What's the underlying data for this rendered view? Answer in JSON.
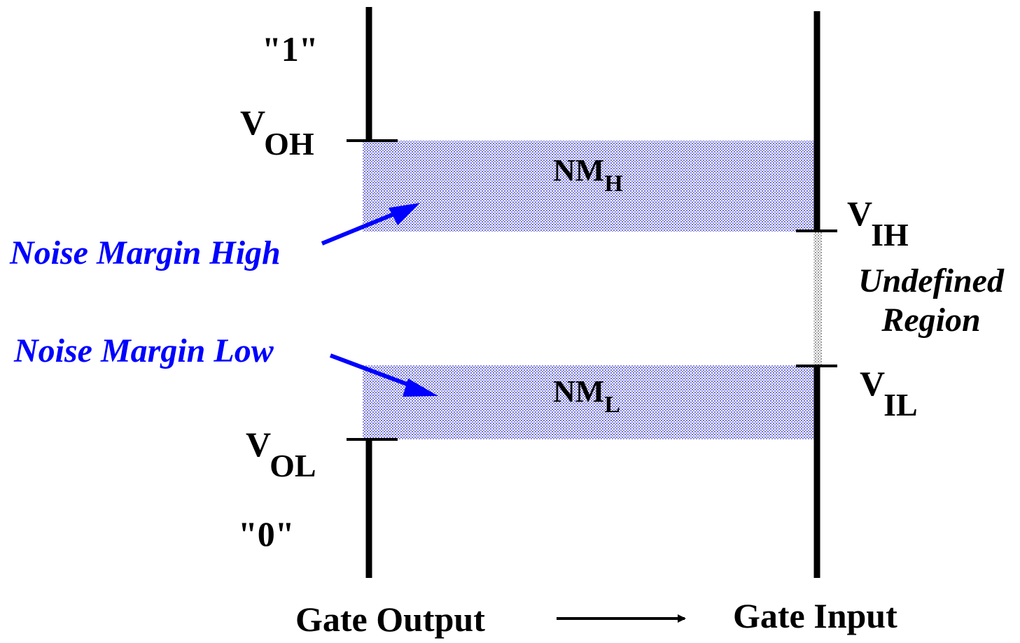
{
  "labels": {
    "one": "\"1\"",
    "zero": "\"0\"",
    "v_oh": {
      "main": "V",
      "sub": "OH"
    },
    "v_ol": {
      "main": "V",
      "sub": "OL"
    },
    "v_ih": {
      "main": "V",
      "sub": "IH"
    },
    "v_il": {
      "main": "V",
      "sub": "IL"
    },
    "nm_h": {
      "main": "NM",
      "sub": "H"
    },
    "nm_l": {
      "main": "NM",
      "sub": "L"
    },
    "noise_margin_high": "Noise Margin High",
    "noise_margin_low": "Noise Margin Low",
    "undefined_line1": "Undefined",
    "undefined_line2": "Region",
    "gate_output": "Gate Output",
    "gate_input": "Gate Input"
  },
  "colors": {
    "margin_fill": "#9a9ae6",
    "annotation": "#0000ff",
    "lines": "#000000"
  }
}
